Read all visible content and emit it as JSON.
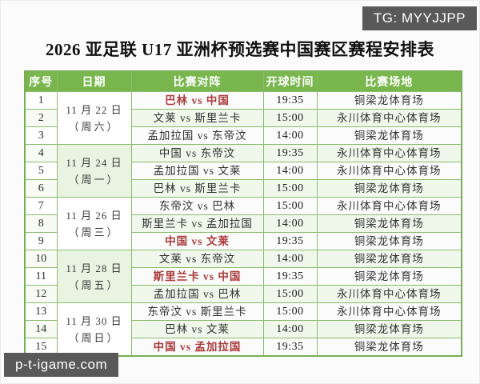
{
  "watermarks": {
    "top_right": "TG: MYYJJPP",
    "bottom_left": "p-t-igame.com"
  },
  "title": "2026 亚足联 U17 亚洲杯预选赛中国赛区赛程安排表",
  "table": {
    "headers": [
      "序号",
      "日期",
      "比赛对阵",
      "开球时间",
      "比赛场地"
    ],
    "date_groups": [
      {
        "line1": "11 月 22 日",
        "line2": "（周六）"
      },
      {
        "line1": "11 月 24 日",
        "line2": "（周一）"
      },
      {
        "line1": "11 月 26 日",
        "line2": "（周三）"
      },
      {
        "line1": "11 月 28 日",
        "line2": "（周五）"
      },
      {
        "line1": "11 月 30 日",
        "line2": "（周日）"
      }
    ],
    "rows": [
      {
        "no": "1",
        "match": "巴林 vs 中国",
        "highlight": true,
        "time": "19:35",
        "venue": "铜梁龙体育场"
      },
      {
        "no": "2",
        "match": "文莱 vs 斯里兰卡",
        "highlight": false,
        "time": "15:00",
        "venue": "永川体育中心体育场"
      },
      {
        "no": "3",
        "match": "孟加拉国 vs 东帝汶",
        "highlight": false,
        "time": "14:00",
        "venue": "铜梁龙体育场"
      },
      {
        "no": "4",
        "match": "中国 vs 东帝汶",
        "highlight": false,
        "time": "19:35",
        "venue": "永川体育中心体育场"
      },
      {
        "no": "5",
        "match": "孟加拉国 vs 文莱",
        "highlight": false,
        "time": "14:00",
        "venue": "永川体育中心体育场"
      },
      {
        "no": "6",
        "match": "巴林 vs 斯里兰卡",
        "highlight": false,
        "time": "15:00",
        "venue": "铜梁龙体育场"
      },
      {
        "no": "7",
        "match": "东帝汶 vs 巴林",
        "highlight": false,
        "time": "15:00",
        "venue": "永川体育中心体育场"
      },
      {
        "no": "8",
        "match": "斯里兰卡 vs 孟加拉国",
        "highlight": false,
        "time": "14:00",
        "venue": "铜梁龙体育场"
      },
      {
        "no": "9",
        "match": "中国 vs 文莱",
        "highlight": true,
        "time": "19:35",
        "venue": "铜梁龙体育场"
      },
      {
        "no": "10",
        "match": "文莱 vs 东帝汶",
        "highlight": false,
        "time": "14:00",
        "venue": "铜梁龙体育场"
      },
      {
        "no": "11",
        "match": "斯里兰卡 vs 中国",
        "highlight": true,
        "time": "19:35",
        "venue": "铜梁龙体育场"
      },
      {
        "no": "12",
        "match": "孟加拉国 vs 巴林",
        "highlight": false,
        "time": "15:00",
        "venue": "永川体育中心体育场"
      },
      {
        "no": "13",
        "match": "东帝汶 vs 斯里兰卡",
        "highlight": false,
        "time": "15:00",
        "venue": "永川体育中心体育场"
      },
      {
        "no": "14",
        "match": "巴林 vs 文莱",
        "highlight": false,
        "time": "14:00",
        "venue": "铜梁龙体育场"
      },
      {
        "no": "15",
        "match": "中国 vs 孟加拉国",
        "highlight": true,
        "time": "19:35",
        "venue": "铜梁龙体育场"
      }
    ]
  },
  "colors": {
    "header_bg": "#79b74e",
    "border_green": "#8cbb6d",
    "highlight_red": "#ab3a3a",
    "badge_bg": "#595959"
  }
}
